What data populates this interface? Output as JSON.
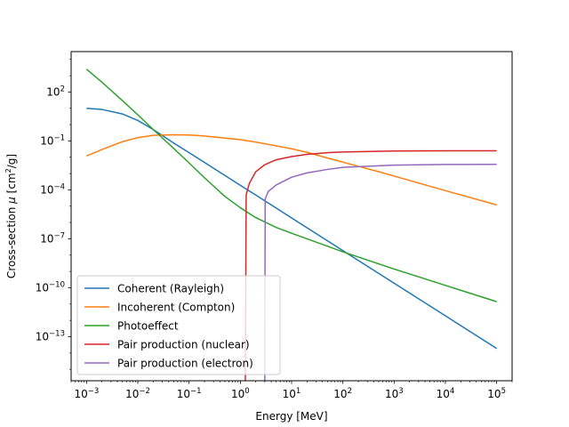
{
  "chart_data": {
    "type": "line",
    "title": "",
    "xlabel": "Energy [MeV]",
    "ylabel_prefix": "Cross-section ",
    "ylabel_symbol": "μ",
    "ylabel_unit_open": " [cm",
    "ylabel_unit_power": "2",
    "ylabel_unit_close": "/g]",
    "x_scale": "log",
    "y_scale": "log",
    "xlim": [
      0.0005,
      200000
    ],
    "ylim": [
      2e-16,
      30000
    ],
    "grid": false,
    "legend_placement": "lower-left",
    "x_ticks": [
      {
        "value": 0.001,
        "base": "10",
        "exp": "−3"
      },
      {
        "value": 0.01,
        "base": "10",
        "exp": "−2"
      },
      {
        "value": 0.1,
        "base": "10",
        "exp": "−1"
      },
      {
        "value": 1,
        "base": "10",
        "exp": "0"
      },
      {
        "value": 10,
        "base": "10",
        "exp": "1"
      },
      {
        "value": 100,
        "base": "10",
        "exp": "2"
      },
      {
        "value": 1000,
        "base": "10",
        "exp": "3"
      },
      {
        "value": 10000,
        "base": "10",
        "exp": "4"
      },
      {
        "value": 100000,
        "base": "10",
        "exp": "5"
      }
    ],
    "y_ticks": [
      {
        "value": 1e-13,
        "base": "10",
        "exp": "−13"
      },
      {
        "value": 1e-10,
        "base": "10",
        "exp": "−10"
      },
      {
        "value": 1e-07,
        "base": "10",
        "exp": "−7"
      },
      {
        "value": 0.0001,
        "base": "10",
        "exp": "−4"
      },
      {
        "value": 0.1,
        "base": "10",
        "exp": "−1"
      },
      {
        "value": 100,
        "base": "10",
        "exp": "2"
      }
    ],
    "series": [
      {
        "name": "Coherent (Rayleigh)",
        "color": "#1f77b4",
        "x": [
          0.001,
          0.002,
          0.005,
          0.01,
          0.02,
          0.05,
          0.1,
          0.2,
          0.5,
          1,
          2,
          5,
          10,
          100,
          1000,
          10000,
          100000
        ],
        "y": [
          10,
          8.5,
          4.5,
          1.8,
          0.5,
          0.075,
          0.019,
          0.0048,
          0.00077,
          0.00019,
          4.8e-05,
          7.7e-06,
          1.9e-06,
          1.9e-08,
          1.9e-10,
          1.9e-12,
          1.9e-14
        ]
      },
      {
        "name": "Incoherent (Compton)",
        "color": "#ff7f0e",
        "x": [
          0.001,
          0.002,
          0.005,
          0.01,
          0.02,
          0.05,
          0.1,
          0.2,
          0.5,
          1,
          2,
          5,
          10,
          20,
          50,
          100,
          200,
          500,
          1000,
          10000,
          100000
        ],
        "y": [
          0.012,
          0.03,
          0.09,
          0.16,
          0.22,
          0.24,
          0.23,
          0.2,
          0.15,
          0.12,
          0.085,
          0.05,
          0.033,
          0.02,
          0.009,
          0.005,
          0.0028,
          0.0013,
          0.0007,
          9e-05,
          1.2e-05
        ]
      },
      {
        "name": "Photoeffect",
        "color": "#2ca02c",
        "x": [
          0.001,
          0.002,
          0.005,
          0.01,
          0.02,
          0.05,
          0.1,
          0.2,
          0.5,
          1,
          2,
          5,
          10,
          100,
          1000,
          10000,
          100000
        ],
        "y": [
          2500,
          400,
          30,
          4,
          0.5,
          0.035,
          0.0045,
          0.00055,
          4e-05,
          8e-06,
          2e-06,
          5e-07,
          2.2e-07,
          1.6e-08,
          1.4e-09,
          1.4e-10,
          1.4e-11
        ]
      },
      {
        "name": "Pair production (nuclear)",
        "color": "#d62728",
        "x": [
          1.25,
          1.3,
          1.5,
          2,
          3,
          5,
          10,
          20,
          50,
          100,
          1000,
          10000,
          100000
        ],
        "y": [
          1e-16,
          5e-05,
          0.00025,
          0.0013,
          0.0035,
          0.007,
          0.011,
          0.015,
          0.019,
          0.021,
          0.024,
          0.025,
          0.025
        ]
      },
      {
        "name": "Pair production (electron)",
        "color": "#9467bd",
        "x": [
          3.0,
          3.05,
          3.5,
          5,
          10,
          20,
          50,
          100,
          1000,
          10000,
          100000
        ],
        "y": [
          1e-16,
          2.7e-05,
          8e-05,
          0.0002,
          0.0006,
          0.0011,
          0.0018,
          0.0024,
          0.0033,
          0.0036,
          0.0037
        ]
      }
    ]
  }
}
